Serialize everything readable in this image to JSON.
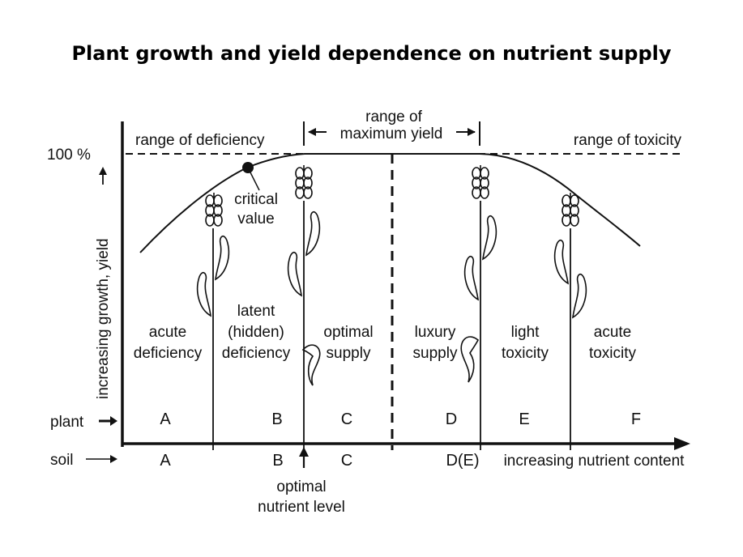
{
  "title": "Plant growth and yield dependence on nutrient supply",
  "axes": {
    "y_axis_label": "increasing growth, yield",
    "x_axis_label": "increasing nutrient content",
    "y_tick_100": "100 %"
  },
  "ranges": {
    "deficiency": "range of deficiency",
    "maximum_line1": "range of",
    "maximum_line2": "maximum yield",
    "toxicity": "range of toxicity"
  },
  "annotations": {
    "critical_line1": "critical",
    "critical_line2": "value",
    "optimal_level_line1": "optimal",
    "optimal_level_line2": "nutrient level"
  },
  "zones": [
    {
      "line1": "acute",
      "line2": "deficiency",
      "plant": "A",
      "soil": "A"
    },
    {
      "line0": "latent",
      "line1": "(hidden)",
      "line2": "deficiency",
      "plant": "B",
      "soil": "B"
    },
    {
      "line1": "optimal",
      "line2": "supply",
      "plant": "C",
      "soil": "C"
    },
    {
      "line1": "luxury",
      "line2": "supply",
      "plant": "D",
      "soil": "D(E)"
    },
    {
      "line1": "light",
      "line2": "toxicity",
      "plant": "E",
      "soil": ""
    },
    {
      "line1": "acute",
      "line2": "toxicity",
      "plant": "F",
      "soil": ""
    }
  ],
  "row_labels": {
    "plant": "plant",
    "soil": "soil"
  },
  "icons": [
    "wheat-ear-icon",
    "leaf-icon",
    "arrow-icon"
  ]
}
